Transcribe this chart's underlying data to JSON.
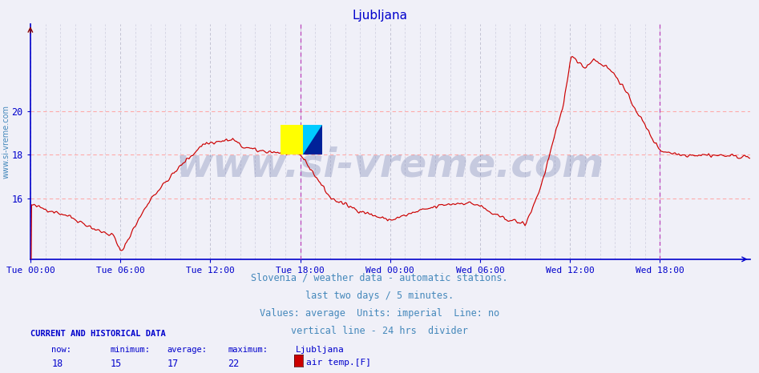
{
  "title": "Ljubljana",
  "title_color": "#0000cc",
  "title_fontsize": 11,
  "bg_color": "#f0f0f8",
  "plot_bg_color": "#f0f0f8",
  "line_color": "#cc0000",
  "axis_color": "#0000cc",
  "grid_color_h": "#ffaaaa",
  "grid_color_v": "#ccccdd",
  "ylabel_text": "www.si-vreme.com",
  "ylabel_color": "#4488bb",
  "ylim": [
    13.2,
    24.0
  ],
  "yticks": [
    16,
    18,
    20
  ],
  "xlabel_ticks": [
    "Tue 00:00",
    "Tue 06:00",
    "Tue 12:00",
    "Tue 18:00",
    "Wed 00:00",
    "Wed 06:00",
    "Wed 12:00",
    "Wed 18:00"
  ],
  "xlabel_tick_positions": [
    0,
    72,
    144,
    216,
    288,
    360,
    432,
    504
  ],
  "total_points": 577,
  "divider_x": 216,
  "divider_x2": 504,
  "footer_lines": [
    "Slovenia / weather data - automatic stations.",
    "last two days / 5 minutes.",
    "Values: average  Units: imperial  Line: no",
    "vertical line - 24 hrs  divider"
  ],
  "footer_color": "#4488bb",
  "footer_fontsize": 8.5,
  "current_label": "CURRENT AND HISTORICAL DATA",
  "stats_labels": [
    "now:",
    "minimum:",
    "average:",
    "maximum:"
  ],
  "stats_values": [
    "18",
    "15",
    "17",
    "22"
  ],
  "legend_label": "Ljubljana",
  "legend_sublabel": "air temp.[F]",
  "legend_color": "#cc0000",
  "watermark": "www.si-vreme.com",
  "watermark_color": "#334488",
  "watermark_alpha": 0.22,
  "watermark_fontsize": 36
}
